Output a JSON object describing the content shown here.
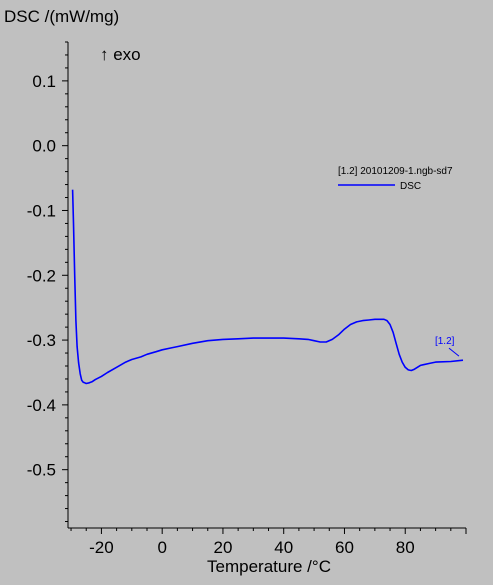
{
  "chart_data": {
    "type": "line",
    "title": "",
    "ylabel": "DSC /(mW/mg)",
    "xlabel": "Temperature /°C",
    "exo_label": "↑ exo",
    "xlim": [
      -31,
      100
    ],
    "ylim": [
      -0.59,
      0.16
    ],
    "x_ticks": [
      -20,
      0,
      20,
      40,
      60,
      80
    ],
    "y_ticks": [
      0.1,
      0.0,
      -0.1,
      -0.2,
      -0.3,
      -0.4,
      -0.5
    ],
    "x_tick_labels": [
      "-20",
      "0",
      "20",
      "40",
      "60",
      "80"
    ],
    "y_tick_labels": [
      "0.1",
      "0.0",
      "-0.1",
      "-0.2",
      "-0.3",
      "-0.4",
      "-0.5"
    ],
    "grid": false,
    "legend": {
      "placement": "upper-right",
      "header": "[1.2] 20101209-1.ngb-sd7",
      "entries": [
        {
          "label": "DSC",
          "color": "#0000ff"
        }
      ]
    },
    "series": [
      {
        "name": "DSC",
        "color": "#0000ff",
        "end_label": "[1.2]",
        "x": [
          -29.5,
          -29.2,
          -28.8,
          -28.4,
          -28.0,
          -27.5,
          -27.0,
          -26.5,
          -26.0,
          -25.5,
          -25.0,
          -24.0,
          -23.0,
          -22.0,
          -20.0,
          -18.0,
          -15.0,
          -12.0,
          -10.0,
          -7.0,
          -5.0,
          -2.0,
          0.0,
          3.0,
          5.0,
          10.0,
          15.0,
          20.0,
          25.0,
          30.0,
          35.0,
          40.0,
          45.0,
          48.0,
          50.0,
          52.0,
          54.0,
          56.0,
          58.0,
          60.0,
          62.0,
          64.0,
          66.0,
          68.0,
          70.0,
          72.0,
          73.0,
          74.0,
          75.0,
          76.0,
          77.0,
          78.0,
          79.0,
          80.0,
          81.0,
          82.0,
          83.0,
          84.0,
          85.0,
          86.0,
          88.0,
          90.0,
          95.0,
          99.0
        ],
        "y": [
          -0.068,
          -0.12,
          -0.2,
          -0.27,
          -0.31,
          -0.335,
          -0.352,
          -0.362,
          -0.365,
          -0.366,
          -0.367,
          -0.366,
          -0.364,
          -0.361,
          -0.356,
          -0.35,
          -0.342,
          -0.334,
          -0.33,
          -0.326,
          -0.322,
          -0.318,
          -0.315,
          -0.312,
          -0.31,
          -0.305,
          -0.301,
          -0.299,
          -0.298,
          -0.297,
          -0.297,
          -0.297,
          -0.298,
          -0.299,
          -0.301,
          -0.303,
          -0.303,
          -0.299,
          -0.292,
          -0.283,
          -0.276,
          -0.272,
          -0.27,
          -0.269,
          -0.268,
          -0.268,
          -0.268,
          -0.27,
          -0.276,
          -0.288,
          -0.305,
          -0.322,
          -0.334,
          -0.342,
          -0.346,
          -0.347,
          -0.345,
          -0.342,
          -0.339,
          -0.338,
          -0.336,
          -0.334,
          -0.333,
          -0.331
        ]
      }
    ]
  }
}
